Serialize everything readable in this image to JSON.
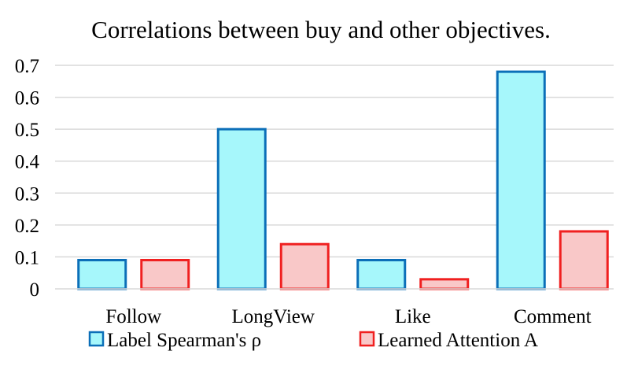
{
  "chart_data": {
    "type": "bar",
    "title": "Correlations between buy and other objectives.",
    "categories": [
      "Follow",
      "LongView",
      "Like",
      "Comment"
    ],
    "series": [
      {
        "name": "Label Spearman's ρ",
        "values": [
          0.09,
          0.5,
          0.09,
          0.68
        ],
        "fill": "#a6f7fb",
        "stroke": "#0b6fb8"
      },
      {
        "name": "Learned Attention A",
        "values": [
          0.09,
          0.14,
          0.03,
          0.18
        ],
        "fill": "#f9c8c8",
        "stroke": "#f02020"
      }
    ],
    "ylim": [
      0,
      0.7
    ],
    "yticks": [
      "0",
      "0.1",
      "0.2",
      "0.3",
      "0.4",
      "0.5",
      "0.6",
      "0.7"
    ],
    "grid": true,
    "gridline_color": "#d9d9d9",
    "legend_position": "bottom"
  }
}
